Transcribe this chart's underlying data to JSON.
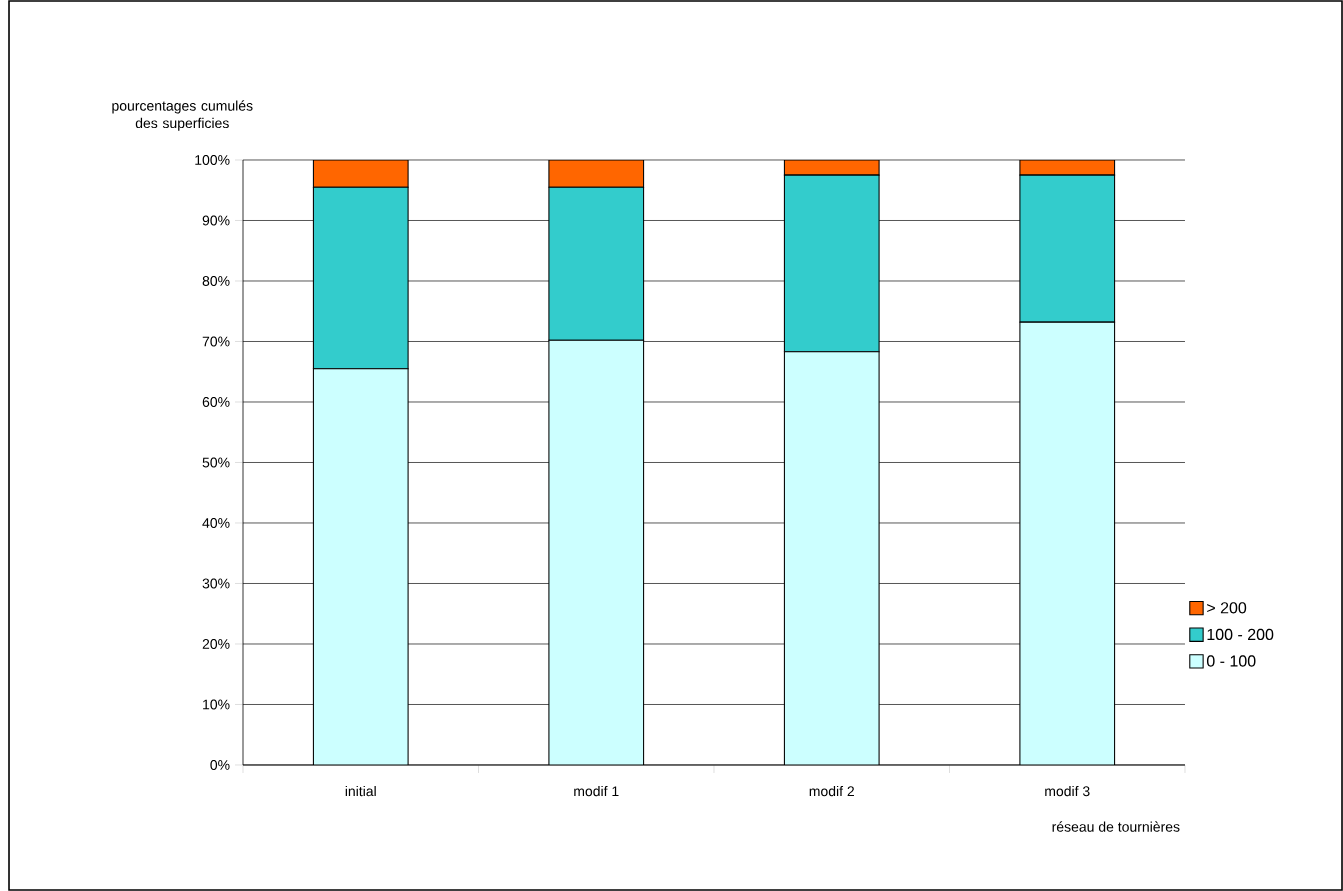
{
  "chart_data": {
    "type": "bar",
    "stacked": true,
    "ylabel": "pourcentages cumulés des superficies",
    "xlabel": "réseau de tournières",
    "categories": [
      "initial",
      "modif 1",
      "modif 2",
      "modif 3"
    ],
    "series": [
      {
        "name": "0 - 100",
        "color": "#ccffff",
        "values": [
          65.5,
          70.2,
          68.3,
          73.2
        ]
      },
      {
        "name": "100 - 200",
        "color": "#33cccc",
        "values": [
          30.0,
          25.3,
          29.2,
          24.3
        ]
      },
      {
        "name": "> 200",
        "color": "#ff6600",
        "values": [
          4.5,
          4.5,
          2.5,
          2.5
        ]
      }
    ],
    "ylim": [
      0,
      100
    ],
    "yticks": [
      {
        "value": 0,
        "label": "0%"
      },
      {
        "value": 10,
        "label": "10%"
      },
      {
        "value": 20,
        "label": "20%"
      },
      {
        "value": 30,
        "label": "30%"
      },
      {
        "value": 40,
        "label": "40%"
      },
      {
        "value": 50,
        "label": "50%"
      },
      {
        "value": 60,
        "label": "60%"
      },
      {
        "value": 70,
        "label": "70%"
      },
      {
        "value": 80,
        "label": "80%"
      },
      {
        "value": 90,
        "label": "90%"
      },
      {
        "value": 100,
        "label": "100%"
      }
    ],
    "grid": "y",
    "legend": "right"
  }
}
